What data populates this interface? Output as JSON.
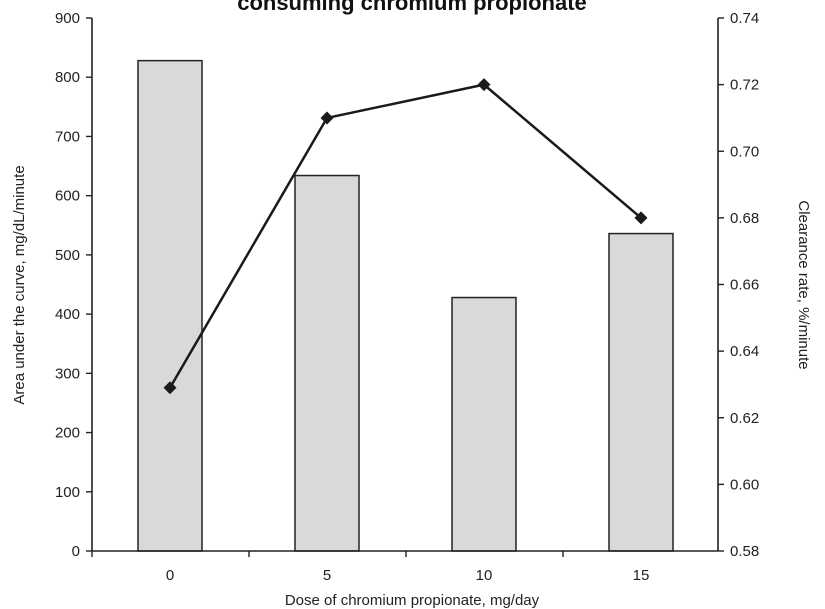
{
  "chart_data": {
    "type": "bar",
    "title": "consuming chromium propionate",
    "xlabel": "Dose of chromium propionate, mg/day",
    "ylabel": "Area under the curve, mg/dL/minute",
    "y2label": "Clearance rate, %/minute",
    "categories": [
      "0",
      "5",
      "10",
      "15"
    ],
    "ylim": [
      0,
      900
    ],
    "y2lim": [
      0.58,
      0.74
    ],
    "yticks": [
      0,
      100,
      200,
      300,
      400,
      500,
      600,
      700,
      800,
      900
    ],
    "y2ticks": [
      "0.58",
      "0.60",
      "0.62",
      "0.64",
      "0.66",
      "0.68",
      "0.70",
      "0.72",
      "0.74"
    ],
    "series": [
      {
        "kind": "bar",
        "axis": "left",
        "values": [
          828,
          634,
          428,
          536
        ]
      },
      {
        "kind": "line",
        "axis": "right",
        "marker": "diamond",
        "values": [
          0.629,
          0.71,
          0.72,
          0.68
        ]
      }
    ],
    "colors": {
      "bar_fill": "#d9d9d9",
      "line": "#1a1a1a"
    },
    "grid": false
  }
}
